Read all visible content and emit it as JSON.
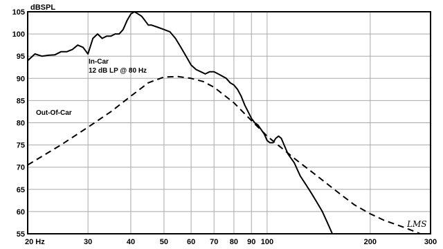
{
  "chart_data": {
    "type": "line",
    "ylabel": "dBSPL",
    "ylim": [
      55,
      105
    ],
    "xlim": [
      20,
      300
    ],
    "x_scale": "log",
    "grid": true,
    "y_ticks": [
      55,
      60,
      65,
      70,
      75,
      80,
      85,
      90,
      95,
      100,
      105
    ],
    "x_ticks": [
      20,
      30,
      40,
      50,
      60,
      70,
      80,
      90,
      100,
      200,
      300
    ],
    "x_tick_labels": [
      "20 Hz",
      "30",
      "40",
      "50",
      "60",
      "70",
      "80",
      "90",
      "100",
      "200",
      "300"
    ],
    "series": [
      {
        "name": "In-Car 12 dB LP @ 80 Hz",
        "style": "solid",
        "x": [
          20,
          21,
          22,
          23,
          24,
          25,
          26,
          27,
          28,
          29,
          30,
          31,
          32,
          33,
          34,
          35,
          36,
          37,
          38,
          39,
          40,
          41,
          42,
          43,
          44,
          45,
          46,
          48,
          50,
          52,
          54,
          56,
          58,
          60,
          62,
          64,
          66,
          68,
          70,
          72,
          74,
          76,
          78,
          80,
          82,
          84,
          86,
          88,
          90,
          92,
          94,
          96,
          98,
          100,
          102,
          104,
          106,
          108,
          110,
          115,
          120,
          125,
          130,
          135,
          140,
          145,
          150,
          155
        ],
        "y": [
          94,
          95.5,
          95,
          95.2,
          95.3,
          96,
          96,
          96.5,
          97.5,
          97,
          95.5,
          99,
          100,
          99,
          99.5,
          99.5,
          100,
          100,
          101,
          103,
          104.5,
          105,
          104.5,
          104,
          103,
          102,
          102,
          101.5,
          101,
          100.5,
          99,
          97,
          95,
          93,
          92,
          91.5,
          91,
          91.5,
          91.5,
          91,
          90.5,
          90,
          89,
          88.5,
          87.5,
          86,
          84,
          82.5,
          81,
          80,
          79.5,
          78.5,
          77.5,
          76,
          75.5,
          75.5,
          76.5,
          77,
          76.5,
          73,
          71,
          68,
          66,
          64,
          62,
          60,
          57.5,
          55
        ]
      },
      {
        "name": "Out-Of-Car",
        "style": "dashed",
        "x": [
          20,
          25,
          30,
          35,
          40,
          45,
          50,
          55,
          60,
          65,
          70,
          80,
          90,
          100,
          120,
          140,
          160,
          180,
          200,
          220,
          250,
          280
        ],
        "y": [
          70.5,
          75,
          79,
          82.5,
          86,
          89,
          90.3,
          90.4,
          90,
          89.3,
          88,
          84.5,
          80.5,
          77,
          72,
          68,
          64.5,
          61.5,
          59.5,
          58,
          56.5,
          55
        ]
      }
    ],
    "annotations": [
      {
        "lines": [
          "In-Car",
          "12 dB LP @ 80 Hz"
        ]
      },
      {
        "lines": [
          "Out-Of-Car"
        ]
      }
    ],
    "watermark": "LMS"
  }
}
